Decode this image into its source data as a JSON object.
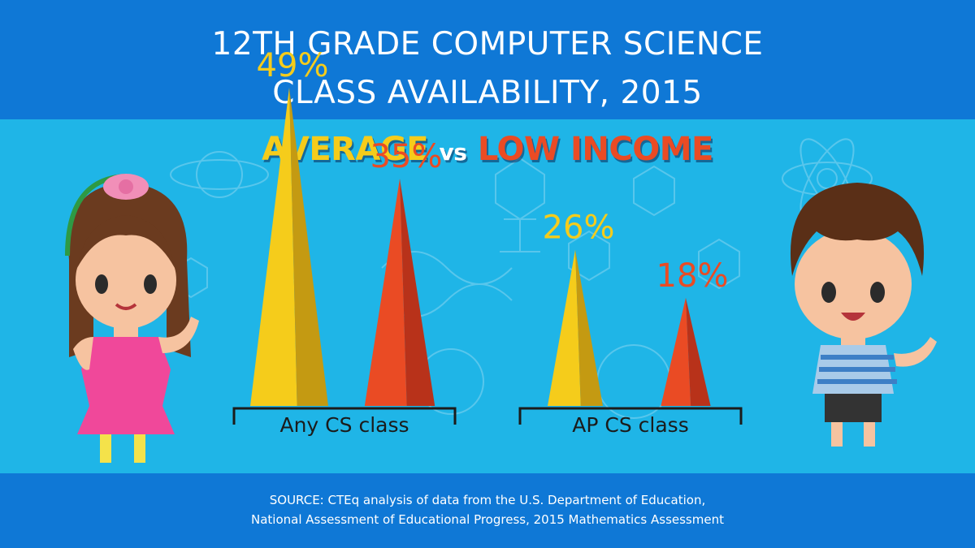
{
  "title": {
    "line1": "12TH GRADE COMPUTER SCIENCE",
    "line2": "CLASS AVAILABILITY, 2015"
  },
  "subtitle": {
    "average": "AVERAGE",
    "vs": "vs",
    "low_income": "LOW INCOME"
  },
  "source": {
    "line1": "SOURCE: CTEq analysis of data from the U.S. Department of Education,",
    "line2": "National Assessment of Educational Progress, 2015 Mathematics Assessment"
  },
  "colors": {
    "header_band": "#0f78d6",
    "background": "#1fb5e7",
    "average": "#f5cc1b",
    "low_income": "#ea4b24"
  },
  "chart_data": {
    "type": "bar",
    "mark_shape": "triangle",
    "categories": [
      "Any CS class",
      "AP CS class"
    ],
    "series": [
      {
        "name": "AVERAGE",
        "values": [
          49,
          26
        ],
        "labels": [
          "49%",
          "26%"
        ],
        "color": "#f5cc1b",
        "shade": "#c49a12"
      },
      {
        "name": "LOW INCOME",
        "values": [
          35,
          18
        ],
        "labels": [
          "35%",
          "18%"
        ],
        "color": "#ea4b24",
        "shade": "#b8321a"
      }
    ],
    "unit": "%",
    "ylim": [
      0,
      50
    ],
    "grid": false,
    "legend": "subtitle-words"
  }
}
